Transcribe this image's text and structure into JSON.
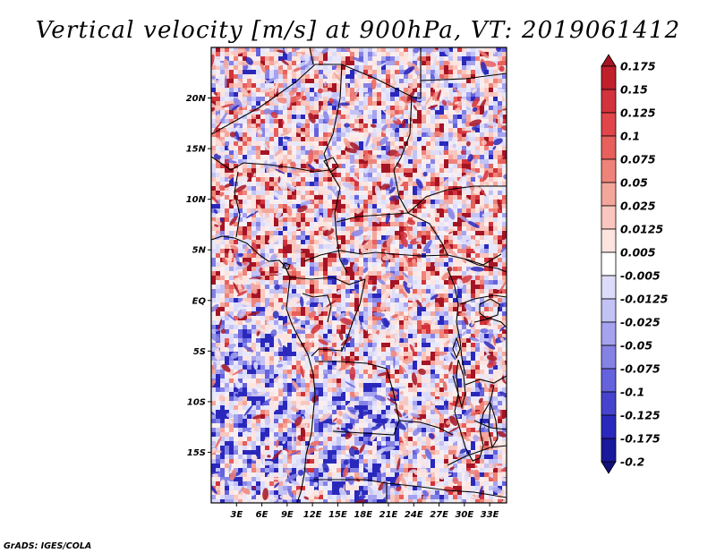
{
  "title": "Vertical velocity [m/s] at 900hPa, VT: 2019061412",
  "credit": "GrADS: IGES/COLA",
  "map": {
    "lon_range": [
      0,
      35
    ],
    "lat_range": [
      -20,
      25
    ],
    "lat_ticks": [
      {
        "value": 20,
        "label": "20N"
      },
      {
        "value": 15,
        "label": "15N"
      },
      {
        "value": 10,
        "label": "10N"
      },
      {
        "value": 5,
        "label": "5N"
      },
      {
        "value": 0,
        "label": "EQ"
      },
      {
        "value": -5,
        "label": "5S"
      },
      {
        "value": -10,
        "label": "10S"
      },
      {
        "value": -15,
        "label": "15S"
      }
    ],
    "lon_ticks": [
      {
        "value": 3,
        "label": "3E"
      },
      {
        "value": 6,
        "label": "6E"
      },
      {
        "value": 9,
        "label": "9E"
      },
      {
        "value": 12,
        "label": "12E"
      },
      {
        "value": 15,
        "label": "15E"
      },
      {
        "value": 18,
        "label": "18E"
      },
      {
        "value": 21,
        "label": "21E"
      },
      {
        "value": 24,
        "label": "24E"
      },
      {
        "value": 27,
        "label": "27E"
      },
      {
        "value": 30,
        "label": "30E"
      },
      {
        "value": 33,
        "label": "33E"
      }
    ]
  },
  "colorbar": {
    "labels": [
      "0.175",
      "0.15",
      "0.125",
      "0.1",
      "0.075",
      "0.05",
      "0.025",
      "0.0125",
      "0.005",
      "-0.005",
      "-0.0125",
      "-0.025",
      "-0.05",
      "-0.075",
      "-0.1",
      "-0.125",
      "-0.175",
      "-0.2"
    ],
    "colors": [
      "#a41424",
      "#c01f2c",
      "#d3333b",
      "#e0464a",
      "#e7605c",
      "#ef8379",
      "#f5a69b",
      "#f9c7bf",
      "#fde4df",
      "#ffffff",
      "#dcdcfa",
      "#c3c2f5",
      "#a5a3ef",
      "#8582e6",
      "#6462dd",
      "#4644cf",
      "#2a28bc",
      "#1a189d",
      "#120f78"
    ]
  }
}
